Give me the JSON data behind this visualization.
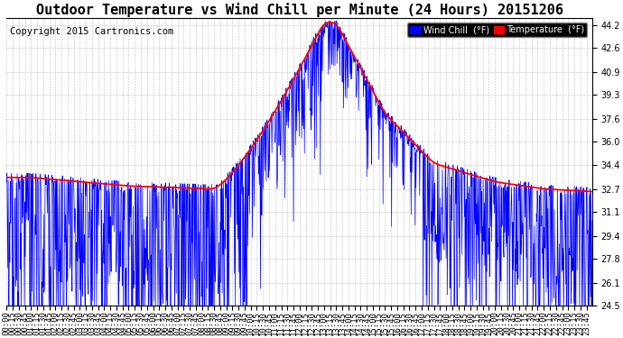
{
  "title": "Outdoor Temperature vs Wind Chill per Minute (24 Hours) 20151206",
  "copyright": "Copyright 2015 Cartronics.com",
  "ylabel_right_ticks": [
    24.5,
    26.1,
    27.8,
    29.4,
    31.1,
    32.7,
    34.4,
    36.0,
    37.6,
    39.3,
    40.9,
    42.6,
    44.2
  ],
  "ylim": [
    24.5,
    44.7
  ],
  "legend_labels": [
    "Wind Chill  (°F)",
    "Temperature  (°F)"
  ],
  "wind_chill_color": "blue",
  "temp_color": "red",
  "background_color": "#ffffff",
  "grid_color": "#bbbbbb",
  "title_fontsize": 11,
  "copyright_fontsize": 7.5,
  "tick_fontsize": 7
}
